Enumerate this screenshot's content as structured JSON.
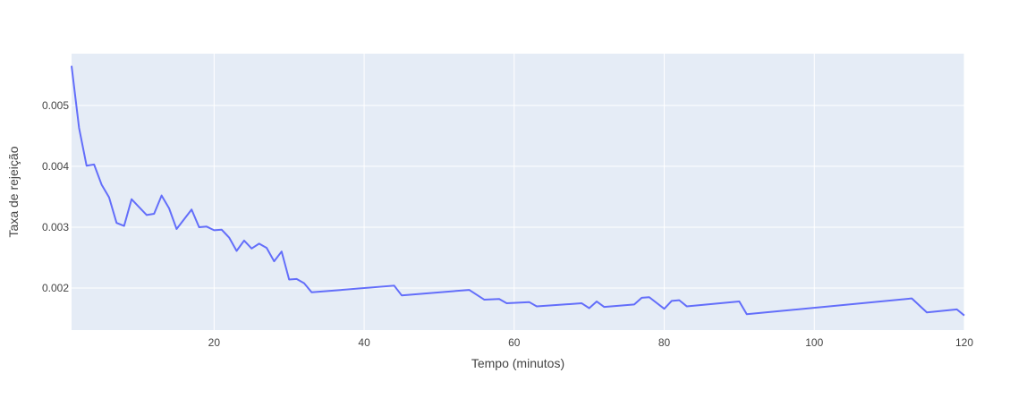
{
  "chart_data": {
    "type": "line",
    "xlabel": "Tempo (minutos)",
    "ylabel": "Taxa de rejeição",
    "xlim": [
      1,
      120
    ],
    "ylim": [
      0.00131,
      0.00585
    ],
    "xticks": [
      20,
      40,
      60,
      80,
      100,
      120
    ],
    "xtick_labels": [
      "20",
      "40",
      "60",
      "80",
      "100",
      "120"
    ],
    "yticks": [
      0.002,
      0.003,
      0.004,
      0.005
    ],
    "ytick_labels": [
      "0.002",
      "0.003",
      "0.004",
      "0.005"
    ],
    "grid": true,
    "colors": {
      "plot_bg": "#e5ecf6",
      "grid": "#ffffff",
      "line": "#636efa"
    },
    "series": [
      {
        "x": [
          1,
          2,
          3,
          4,
          5,
          6,
          7,
          8,
          9,
          10,
          11,
          12,
          13,
          14,
          15,
          16,
          17,
          18,
          19,
          20,
          21,
          22,
          23,
          24,
          25,
          26,
          27,
          28,
          29,
          30,
          31,
          32,
          33,
          44,
          45,
          54,
          56,
          58,
          59,
          62,
          63,
          69,
          70,
          71,
          72,
          76,
          77,
          78,
          80,
          81,
          82,
          83,
          90,
          91,
          113,
          115,
          119,
          120
        ],
        "y": [
          0.00565,
          0.00463,
          0.00401,
          0.00403,
          0.0037,
          0.00349,
          0.00307,
          0.00302,
          0.00346,
          0.00333,
          0.0032,
          0.00322,
          0.00352,
          0.00331,
          0.00297,
          0.00313,
          0.00329,
          0.003,
          0.00301,
          0.00295,
          0.00296,
          0.00283,
          0.00261,
          0.00278,
          0.00265,
          0.00273,
          0.00266,
          0.00244,
          0.0026,
          0.00214,
          0.00215,
          0.00208,
          0.00193,
          0.00204,
          0.00188,
          0.00197,
          0.00181,
          0.00182,
          0.00175,
          0.00177,
          0.0017,
          0.00175,
          0.00167,
          0.00178,
          0.00169,
          0.00173,
          0.00184,
          0.00185,
          0.00166,
          0.00179,
          0.0018,
          0.0017,
          0.00178,
          0.00157,
          0.00183,
          0.0016,
          0.00165,
          0.00155
        ]
      }
    ]
  }
}
